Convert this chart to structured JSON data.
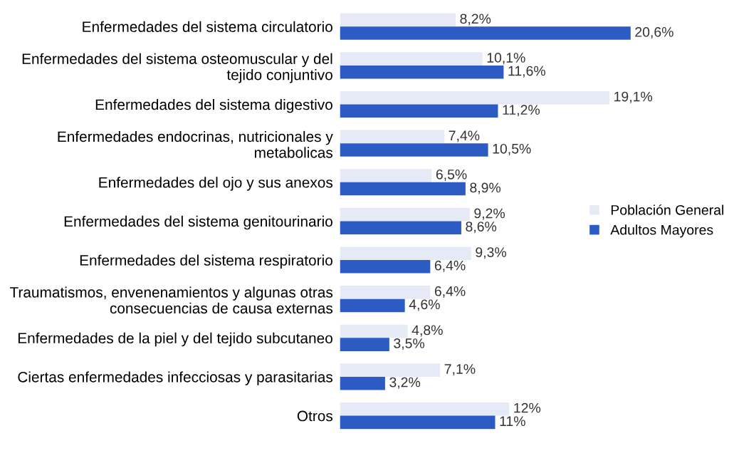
{
  "chart_data": {
    "type": "bar",
    "orientation": "horizontal",
    "categories": [
      "Enfermedades del sistema circulatorio",
      "Enfermedades del sistema osteomuscular y del\ntejido conjuntivo",
      "Enfermedades del sistema digestivo",
      "Enfermedades endocrinas, nutricionales y\nmetabolicas",
      "Enfermedades del ojo y sus anexos",
      "Enfermedades del sistema genitourinario",
      "Enfermedades del sistema respiratorio",
      "Traumatismos, envenenamientos y algunas otras\nconsecuencias de causa externas",
      "Enfermedades de la piel y del tejido subcutaneo",
      "Ciertas enfermedades infecciosas y parasitarias",
      "Otros"
    ],
    "series": [
      {
        "name": "Población General",
        "color": "#e6eaf7",
        "values": [
          8.2,
          10.1,
          19.1,
          7.4,
          6.5,
          9.2,
          9.3,
          6.4,
          4.8,
          7.1,
          12
        ],
        "value_labels": [
          "8,2%",
          "10,1%",
          "19,1%",
          "7,4%",
          "6,5%",
          "9,2%",
          "9,3%",
          "6,4%",
          "4,8%",
          "7,1%",
          "12%"
        ]
      },
      {
        "name": "Adultos Mayores",
        "color": "#2d5bc4",
        "values": [
          20.6,
          11.6,
          11.2,
          10.5,
          8.9,
          8.6,
          6.4,
          4.6,
          3.5,
          3.2,
          11
        ],
        "value_labels": [
          "20,6%",
          "11,6%",
          "11,2%",
          "10,5%",
          "8,9%",
          "8,6%",
          "6,4%",
          "4,6%",
          "3,5%",
          "3,2%",
          "11%"
        ]
      }
    ],
    "tick_labels": "y",
    "legend": "right",
    "grid": false
  }
}
